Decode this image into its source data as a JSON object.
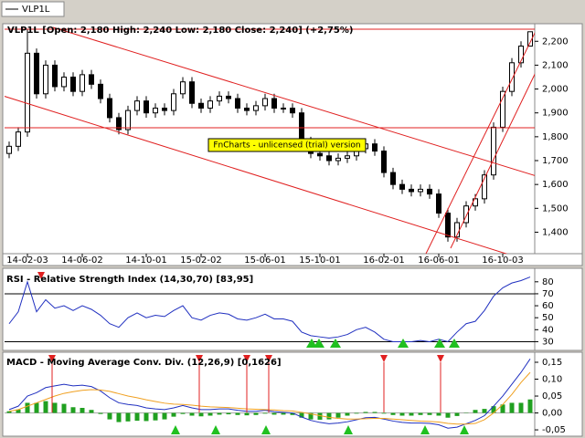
{
  "tab": "VLP1L",
  "chart_data": [
    {
      "type": "candlestick",
      "title": "VLP1L [Open: 2,180  High: 2,240  Low: 2,180  Close: 2,240] (+2,75%)",
      "watermark": "FnCharts - unlicensed (trial) version",
      "categories": [
        null,
        null,
        "14-02-03",
        null,
        null,
        null,
        null,
        null,
        "14-06-02",
        null,
        null,
        null,
        null,
        null,
        null,
        "14-10-01",
        null,
        null,
        null,
        null,
        null,
        "15-02-02",
        null,
        null,
        null,
        null,
        null,
        null,
        "15-06-01",
        null,
        null,
        null,
        null,
        null,
        "15-10-01",
        null,
        null,
        null,
        null,
        null,
        null,
        "16-02-01",
        null,
        null,
        null,
        null,
        null,
        "16-06-01",
        null,
        null,
        null,
        null,
        null,
        null,
        "16-10-03",
        null,
        null,
        null
      ],
      "open": [
        1730,
        1760,
        1820,
        2150,
        1980,
        2100,
        2010,
        2050,
        1990,
        2060,
        2020,
        1960,
        1880,
        1830,
        1910,
        1950,
        1900,
        1920,
        1910,
        1980,
        2030,
        1940,
        1920,
        1950,
        1970,
        1960,
        1920,
        1910,
        1930,
        1960,
        1920,
        1920,
        1900,
        1780,
        1730,
        1720,
        1700,
        1710,
        1720,
        1750,
        1770,
        1740,
        1650,
        1600,
        1580,
        1570,
        1580,
        1560,
        1480,
        1380,
        1440,
        1510,
        1540,
        1640,
        1840,
        1990,
        2110,
        2180
      ],
      "high": [
        1780,
        1840,
        2250,
        2170,
        2120,
        2120,
        2070,
        2070,
        2080,
        2080,
        2040,
        1980,
        1900,
        1930,
        1970,
        1970,
        1940,
        1940,
        2000,
        2050,
        2050,
        1960,
        1970,
        1990,
        1990,
        1980,
        1940,
        1950,
        1980,
        1980,
        1940,
        1940,
        1920,
        1800,
        1750,
        1740,
        1730,
        1740,
        1770,
        1790,
        1790,
        1760,
        1670,
        1620,
        1600,
        1600,
        1600,
        1580,
        1500,
        1460,
        1530,
        1560,
        1660,
        1860,
        2010,
        2130,
        2200,
        2240
      ],
      "low": [
        1710,
        1740,
        1800,
        1960,
        1960,
        1990,
        1990,
        1970,
        1970,
        2000,
        1940,
        1860,
        1810,
        1810,
        1890,
        1880,
        1880,
        1890,
        1890,
        1960,
        1920,
        1900,
        1900,
        1930,
        1940,
        1900,
        1890,
        1890,
        1910,
        1900,
        1900,
        1880,
        1760,
        1710,
        1700,
        1680,
        1680,
        1690,
        1700,
        1730,
        1720,
        1630,
        1580,
        1560,
        1550,
        1550,
        1540,
        1460,
        1360,
        1360,
        1420,
        1490,
        1520,
        1620,
        1820,
        1970,
        2090,
        2180
      ],
      "close": [
        1760,
        1820,
        2150,
        1980,
        2100,
        2010,
        2050,
        1990,
        2060,
        2020,
        1960,
        1880,
        1830,
        1910,
        1950,
        1900,
        1920,
        1910,
        1980,
        2030,
        1940,
        1920,
        1950,
        1970,
        1960,
        1920,
        1910,
        1930,
        1960,
        1920,
        1920,
        1900,
        1780,
        1730,
        1720,
        1700,
        1710,
        1720,
        1750,
        1770,
        1740,
        1650,
        1600,
        1580,
        1570,
        1580,
        1560,
        1480,
        1380,
        1440,
        1510,
        1540,
        1640,
        1840,
        1990,
        2110,
        2180,
        2240
      ],
      "ylim": [
        1310,
        2266
      ],
      "yticks": [
        {
          "value": 1400,
          "label": "1,400"
        },
        {
          "value": 1500,
          "label": "1,500"
        },
        {
          "value": 1600,
          "label": "1,600"
        },
        {
          "value": 1700,
          "label": "1,700"
        },
        {
          "value": 1800,
          "label": "1,800"
        },
        {
          "value": 1900,
          "label": "1,900"
        },
        {
          "value": 2000,
          "label": "2,000"
        },
        {
          "value": 2100,
          "label": "2,100"
        },
        {
          "value": 2200,
          "label": "2,200"
        }
      ],
      "color": "#000000"
    },
    {
      "type": "line",
      "title": "RSI - Relative Strength Index (14,30,70) [83,95]",
      "values": [
        45,
        55,
        80,
        55,
        65,
        58,
        60,
        56,
        60,
        57,
        52,
        45,
        42,
        50,
        54,
        50,
        52,
        51,
        56,
        60,
        50,
        48,
        52,
        54,
        53,
        49,
        48,
        50,
        53,
        49,
        49,
        47,
        38,
        35,
        34,
        33,
        34,
        36,
        40,
        42,
        38,
        32,
        30,
        30,
        30,
        31,
        30,
        32,
        30,
        38,
        45,
        47,
        56,
        68,
        75,
        79,
        81,
        84
      ],
      "color": "#2030c0",
      "reference_lines": [
        30,
        70
      ],
      "ylim": [
        25,
        89
      ],
      "yticks": [
        30,
        40,
        50,
        60,
        70,
        80
      ]
    },
    {
      "type": "macd",
      "title": "MACD - Moving Average Conv. Div. (12,26,9) [0,1626]",
      "series": [
        {
          "color": "#2030c0",
          "values": [
            0.01,
            0.02,
            0.05,
            0.06,
            0.075,
            0.08,
            0.085,
            0.08,
            0.082,
            0.078,
            0.065,
            0.045,
            0.03,
            0.025,
            0.022,
            0.015,
            0.012,
            0.01,
            0.015,
            0.022,
            0.015,
            0.01,
            0.01,
            0.012,
            0.012,
            0.008,
            0.005,
            0.005,
            0.008,
            0.004,
            0.002,
            0.0,
            -0.012,
            -0.022,
            -0.028,
            -0.032,
            -0.03,
            -0.026,
            -0.02,
            -0.014,
            -0.013,
            -0.018,
            -0.024,
            -0.028,
            -0.03,
            -0.03,
            -0.031,
            -0.035,
            -0.045,
            -0.042,
            -0.032,
            -0.022,
            -0.008,
            0.02,
            0.05,
            0.085,
            0.12,
            0.16
          ]
        },
        {
          "color": "#f0a020",
          "values": [
            0.005,
            0.01,
            0.02,
            0.03,
            0.04,
            0.05,
            0.058,
            0.063,
            0.067,
            0.069,
            0.068,
            0.064,
            0.057,
            0.05,
            0.045,
            0.039,
            0.034,
            0.029,
            0.026,
            0.025,
            0.023,
            0.02,
            0.018,
            0.017,
            0.016,
            0.014,
            0.012,
            0.011,
            0.01,
            0.009,
            0.007,
            0.006,
            0.002,
            -0.003,
            -0.008,
            -0.013,
            -0.016,
            -0.018,
            -0.018,
            -0.017,
            -0.016,
            -0.016,
            -0.018,
            -0.02,
            -0.022,
            -0.024,
            -0.025,
            -0.027,
            -0.031,
            -0.033,
            -0.033,
            -0.031,
            -0.02,
            0.0,
            0.025,
            0.055,
            0.09,
            0.12
          ]
        },
        {
          "type": "bar",
          "color": "#20a020",
          "values": [
            0.005,
            0.01,
            0.03,
            0.03,
            0.035,
            0.03,
            0.027,
            0.017,
            0.015,
            0.009,
            -0.003,
            -0.019,
            -0.027,
            -0.025,
            -0.023,
            -0.024,
            -0.022,
            -0.019,
            -0.011,
            -0.003,
            -0.008,
            -0.01,
            -0.008,
            -0.005,
            -0.004,
            -0.006,
            -0.007,
            -0.006,
            -0.002,
            -0.005,
            -0.005,
            -0.006,
            -0.014,
            -0.019,
            -0.02,
            -0.019,
            -0.014,
            -0.008,
            -0.002,
            0.003,
            0.003,
            -0.002,
            -0.006,
            -0.008,
            -0.008,
            -0.006,
            -0.006,
            -0.008,
            -0.014,
            -0.009,
            0.001,
            0.009,
            0.012,
            0.02,
            0.025,
            0.03,
            0.03,
            0.04
          ]
        }
      ],
      "ylim": [
        -0.066,
        0.177
      ],
      "yticks": [
        {
          "value": -0.05,
          "label": "-0,05"
        },
        {
          "value": 0,
          "label": "0,00"
        },
        {
          "value": 0.05,
          "label": "0,05"
        },
        {
          "value": 0.1,
          "label": "0,10"
        },
        {
          "value": 0.15,
          "label": "0,15"
        }
      ]
    }
  ]
}
